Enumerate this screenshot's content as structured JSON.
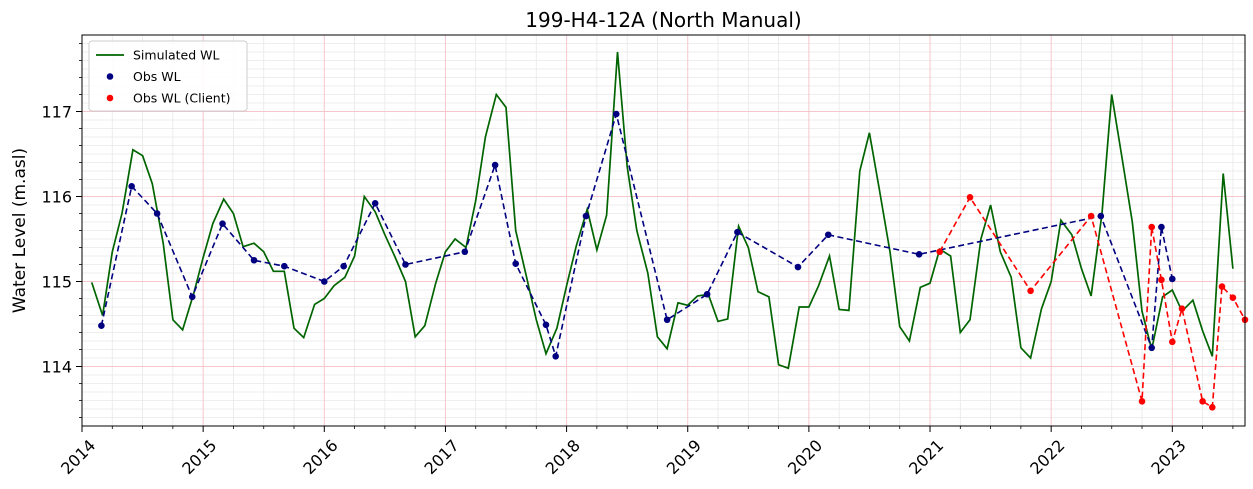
{
  "chart_data": {
    "type": "line",
    "title": "199-H4-12A (North Manual)",
    "xlabel": "",
    "ylabel": "Water Level (m.asl)",
    "xlim": [
      2014.0,
      2023.6
    ],
    "ylim": [
      113.3,
      117.9
    ],
    "x_ticks": [
      2014,
      2015,
      2016,
      2017,
      2018,
      2019,
      2020,
      2021,
      2022,
      2023
    ],
    "x_tick_labels": [
      "2014",
      "2015",
      "2016",
      "2017",
      "2018",
      "2019",
      "2020",
      "2021",
      "2022",
      "2023"
    ],
    "y_ticks": [
      114,
      115,
      116,
      117
    ],
    "y_tick_labels": [
      "114",
      "115",
      "116",
      "117"
    ],
    "grid": true,
    "legend": "top-left",
    "series": [
      {
        "name": "Simulated WL",
        "style": "line",
        "color": "#006400",
        "x": [
          2014.08,
          2014.17,
          2014.25,
          2014.33,
          2014.42,
          2014.5,
          2014.58,
          2014.67,
          2014.75,
          2014.83,
          2014.92,
          2015.0,
          2015.08,
          2015.17,
          2015.25,
          2015.33,
          2015.42,
          2015.5,
          2015.58,
          2015.67,
          2015.75,
          2015.83,
          2015.92,
          2016.0,
          2016.08,
          2016.17,
          2016.25,
          2016.33,
          2016.42,
          2016.5,
          2016.58,
          2016.67,
          2016.75,
          2016.83,
          2016.92,
          2017.0,
          2017.08,
          2017.17,
          2017.25,
          2017.33,
          2017.42,
          2017.5,
          2017.58,
          2017.67,
          2017.75,
          2017.83,
          2017.92,
          2018.0,
          2018.08,
          2018.17,
          2018.25,
          2018.33,
          2018.42,
          2018.5,
          2018.58,
          2018.67,
          2018.75,
          2018.83,
          2018.92,
          2019.0,
          2019.08,
          2019.17,
          2019.25,
          2019.33,
          2019.42,
          2019.5,
          2019.58,
          2019.67,
          2019.75,
          2019.83,
          2019.92,
          2020.0,
          2020.08,
          2020.17,
          2020.25,
          2020.33,
          2020.42,
          2020.5,
          2020.58,
          2020.67,
          2020.75,
          2020.83,
          2020.92,
          2021.0,
          2021.08,
          2021.17,
          2021.25,
          2021.33,
          2021.42,
          2021.5,
          2021.58,
          2021.67,
          2021.75,
          2021.83,
          2021.92,
          2022.0,
          2022.08,
          2022.17,
          2022.25,
          2022.33,
          2022.42,
          2022.5,
          2022.58,
          2022.67,
          2022.75,
          2022.83,
          2022.92,
          2023.0,
          2023.08,
          2023.17,
          2023.25,
          2023.33,
          2023.42,
          2023.5
        ],
        "values": [
          114.99,
          114.6,
          115.35,
          115.8,
          116.55,
          116.48,
          116.15,
          115.45,
          114.55,
          114.43,
          114.85,
          115.28,
          115.68,
          115.97,
          115.8,
          115.41,
          115.45,
          115.35,
          115.12,
          115.12,
          114.45,
          114.34,
          114.73,
          114.8,
          114.95,
          115.05,
          115.3,
          116.0,
          115.82,
          115.55,
          115.3,
          115.0,
          114.35,
          114.48,
          114.98,
          115.35,
          115.5,
          115.4,
          115.95,
          116.7,
          117.2,
          117.05,
          115.6,
          115.05,
          114.55,
          114.15,
          114.45,
          114.95,
          115.42,
          115.85,
          115.37,
          115.78,
          117.7,
          116.35,
          115.6,
          115.1,
          114.35,
          114.21,
          114.75,
          114.72,
          114.83,
          114.85,
          114.53,
          114.56,
          115.65,
          115.4,
          114.88,
          114.82,
          114.02,
          113.98,
          114.7,
          114.7,
          114.95,
          115.3,
          114.67,
          114.66,
          116.3,
          116.75,
          116.1,
          115.35,
          114.47,
          114.3,
          114.93,
          114.98,
          115.38,
          115.3,
          114.4,
          114.55,
          115.5,
          115.9,
          115.35,
          115.05,
          114.22,
          114.1,
          114.68,
          115.0,
          115.72,
          115.55,
          115.15,
          114.83,
          115.8,
          117.2,
          116.5,
          115.7,
          114.65,
          114.2,
          114.82,
          114.9,
          114.65,
          114.78,
          114.42,
          114.12,
          116.27,
          115.15
        ]
      },
      {
        "name": "Obs WL",
        "style": "dashed-markers",
        "color": "#000080",
        "x": [
          2014.16,
          2014.41,
          2014.62,
          2014.91,
          2015.16,
          2015.42,
          2015.67,
          2016.0,
          2016.16,
          2016.42,
          2016.67,
          2017.16,
          2017.41,
          2017.58,
          2017.83,
          2017.91,
          2018.16,
          2018.41,
          2018.83,
          2019.16,
          2019.41,
          2019.91,
          2020.16,
          2020.91,
          2022.41,
          2022.83,
          2022.91,
          2023.0
        ],
        "values": [
          114.48,
          116.12,
          115.8,
          114.82,
          115.68,
          115.25,
          115.18,
          115.0,
          115.18,
          115.92,
          115.2,
          115.35,
          116.37,
          115.21,
          114.49,
          114.12,
          115.77,
          116.97,
          114.55,
          114.85,
          115.58,
          115.17,
          115.55,
          115.32,
          115.77,
          114.22,
          115.64,
          115.03
        ]
      },
      {
        "name": "Obs WL (Client)",
        "style": "dashed-markers",
        "color": "#ff0000",
        "x": [
          2021.08,
          2021.33,
          2021.83,
          2022.33,
          2022.75,
          2022.83,
          2022.91,
          2023.0,
          2023.08,
          2023.25,
          2023.33,
          2023.41,
          2023.5,
          2023.6
        ],
        "values": [
          115.35,
          115.99,
          114.89,
          115.77,
          113.59,
          115.64,
          115.02,
          114.29,
          114.68,
          113.59,
          113.52,
          114.94,
          114.81,
          114.55
        ]
      }
    ]
  }
}
